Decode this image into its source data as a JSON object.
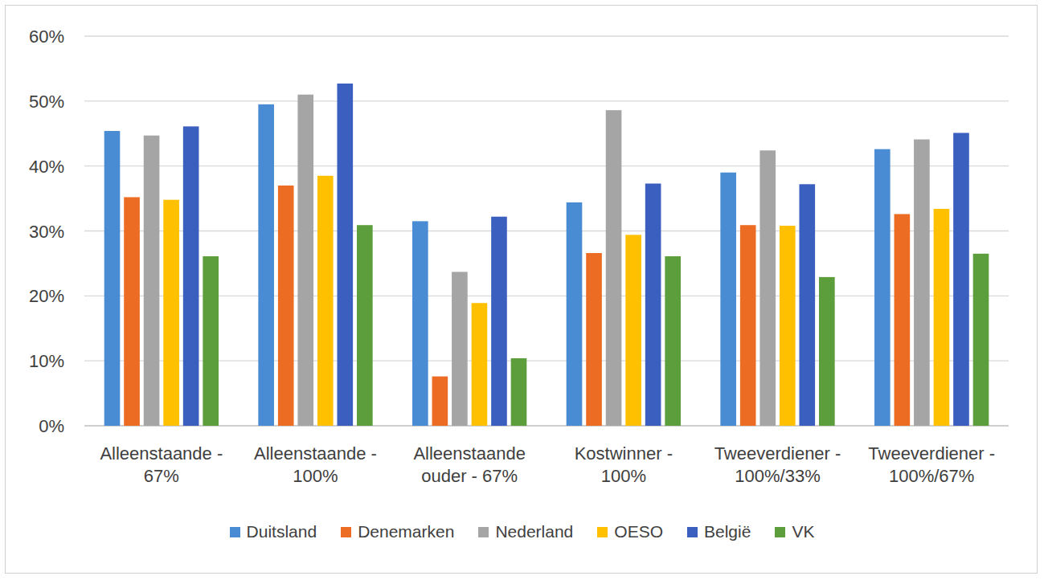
{
  "chart_data": {
    "type": "bar",
    "categories": [
      "Alleenstaande - 67%",
      "Alleenstaande - 100%",
      "Alleenstaande ouder - 67%",
      "Kostwinner - 100%",
      "Tweeverdiener - 100%/33%",
      "Tweeverdiener - 100%/67%"
    ],
    "series": [
      {
        "name": "Duitsland",
        "color": "#4a8cd3",
        "values": [
          45.4,
          49.5,
          31.5,
          34.4,
          39.0,
          42.6
        ]
      },
      {
        "name": "Denemarken",
        "color": "#ec6c24",
        "values": [
          35.2,
          37.0,
          7.6,
          26.6,
          30.9,
          32.6
        ]
      },
      {
        "name": "Nederland",
        "color": "#a5a5a5",
        "values": [
          44.7,
          51.0,
          23.7,
          48.6,
          42.4,
          44.1
        ]
      },
      {
        "name": "OESO",
        "color": "#ffc000",
        "values": [
          34.8,
          38.5,
          18.9,
          29.4,
          30.8,
          33.4
        ]
      },
      {
        "name": "België",
        "color": "#3a5fbf",
        "values": [
          46.1,
          52.7,
          32.2,
          37.3,
          37.2,
          45.1
        ]
      },
      {
        "name": "VK",
        "color": "#5b9e3b",
        "values": [
          26.1,
          30.9,
          10.4,
          26.1,
          22.9,
          26.5
        ]
      }
    ],
    "ylim": [
      0,
      60
    ],
    "yticks": [
      {
        "value": 0,
        "label": "0%"
      },
      {
        "value": 10,
        "label": "10%"
      },
      {
        "value": 20,
        "label": "20%"
      },
      {
        "value": 30,
        "label": "30%"
      },
      {
        "value": 40,
        "label": "40%"
      },
      {
        "value": 50,
        "label": "50%"
      },
      {
        "value": 60,
        "label": "60%"
      }
    ],
    "grid": true,
    "legend": "bottom"
  }
}
